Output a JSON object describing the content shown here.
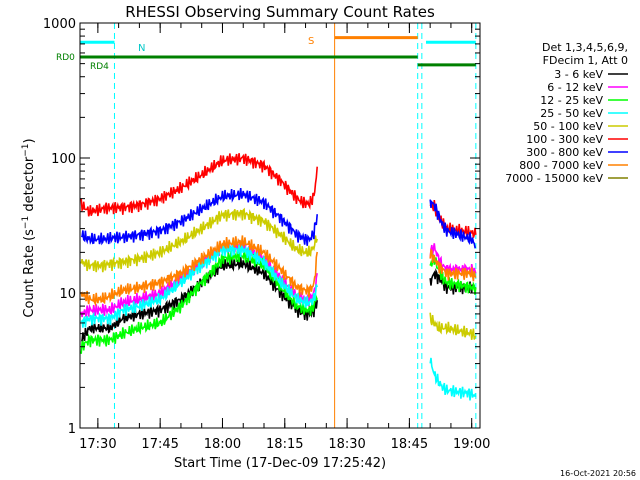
{
  "chart_data": {
    "type": "line",
    "title": "RHESSI Observing Summary Count Rates",
    "xlabel": "Start Time (17-Dec-09 17:25:42)",
    "ylabel": "Count Rate (s⁻¹ detector⁻¹)",
    "ylabel_main": "Count Rate (s",
    "ylabel_sup1": "−1",
    "ylabel_mid": " detector",
    "ylabel_sup2": "−1",
    "ylabel_end": ")",
    "yscale": "log",
    "ylim": [
      1,
      1000
    ],
    "y_ticks": [
      {
        "value": 1,
        "label": "1"
      },
      {
        "value": 10,
        "label": "10"
      },
      {
        "value": 100,
        "label": "100"
      },
      {
        "value": 1000,
        "label": "1000"
      }
    ],
    "x_ticks": [
      {
        "value": "17:30",
        "label": "17:30"
      },
      {
        "value": "17:45",
        "label": "17:45"
      },
      {
        "value": "18:00",
        "label": "18:00"
      },
      {
        "value": "18:15",
        "label": "18:15"
      },
      {
        "value": "18:30",
        "label": "18:30"
      },
      {
        "value": "18:45",
        "label": "18:45"
      },
      {
        "value": "19:00",
        "label": "19:00"
      }
    ],
    "xlim": [
      "17:25:42",
      "19:02:00"
    ],
    "legend_position": "right",
    "legend_header": [
      "Det 1,3,4,5,6,9,",
      "FDecim 1, Att 0"
    ],
    "series": [
      {
        "name": "3 - 6 keV",
        "color": "#000000",
        "x": [
          "17:26",
          "17:28",
          "17:31",
          "17:33",
          "17:36",
          "17:40",
          "17:45",
          "17:50",
          "17:55",
          "18:00",
          "18:05",
          "18:10",
          "18:14",
          "18:18",
          "18:20",
          "18:21",
          "18:22",
          "18:23",
          "18:50",
          "18:51",
          "18:52",
          "18:53",
          "18:54",
          "19:00",
          "19:01"
        ],
        "y": [
          4.5,
          5.5,
          5.5,
          5.5,
          6.5,
          7,
          7.5,
          9,
          12,
          16,
          16.5,
          14,
          10,
          7.5,
          7,
          7,
          7.5,
          9,
          12,
          14,
          13,
          12,
          11,
          11,
          11
        ]
      },
      {
        "name": "6 - 12 keV",
        "color": "#ff00ff",
        "x": [
          "17:26",
          "17:28",
          "17:31",
          "17:33",
          "17:36",
          "17:40",
          "17:45",
          "17:50",
          "17:55",
          "18:00",
          "18:05",
          "18:10",
          "18:14",
          "18:18",
          "18:20",
          "18:21",
          "18:22",
          "18:23",
          "18:50",
          "18:51",
          "18:52",
          "18:53",
          "18:54",
          "19:00",
          "19:01"
        ],
        "y": [
          7,
          7.5,
          7.5,
          7.5,
          8.5,
          9,
          10,
          13,
          17,
          22,
          22,
          18,
          13,
          9.5,
          9,
          9,
          10,
          14,
          20,
          22,
          18,
          16,
          15,
          15,
          14
        ]
      },
      {
        "name": "12 - 25 keV",
        "color": "#00ff00",
        "x": [
          "17:26",
          "17:28",
          "17:31",
          "17:33",
          "17:36",
          "17:40",
          "17:45",
          "17:50",
          "17:55",
          "18:00",
          "18:05",
          "18:10",
          "18:14",
          "18:18",
          "18:20",
          "18:21",
          "18:22",
          "18:23",
          "18:50",
          "18:51",
          "18:52",
          "18:53",
          "18:54",
          "19:00",
          "19:01"
        ],
        "y": [
          4,
          4.5,
          4.5,
          4.5,
          5,
          5.5,
          6,
          8,
          12,
          18,
          19,
          16,
          11,
          8,
          7.5,
          7.5,
          8,
          10,
          16,
          18,
          15,
          13,
          12,
          11,
          11
        ]
      },
      {
        "name": "25 - 50 keV",
        "color": "#00ffff",
        "x": [
          "17:26",
          "17:28",
          "17:31",
          "17:33",
          "17:36",
          "17:40",
          "17:45",
          "17:50",
          "17:55",
          "18:00",
          "18:05",
          "18:10",
          "18:14",
          "18:18",
          "18:20",
          "18:21",
          "18:22",
          "18:23",
          "18:50",
          "18:51",
          "18:52",
          "18:53",
          "18:54",
          "19:00",
          "19:01"
        ],
        "y": [
          6,
          6.5,
          6.5,
          6.5,
          7.5,
          8,
          9,
          12,
          16,
          21,
          21,
          17,
          12,
          9,
          8.5,
          8.5,
          9,
          12,
          3.2,
          2.5,
          2.2,
          2,
          1.9,
          1.8,
          1.7
        ]
      },
      {
        "name": "50 - 100 keV",
        "color": "#cccc00",
        "x": [
          "17:26",
          "17:28",
          "17:31",
          "17:33",
          "17:36",
          "17:40",
          "17:45",
          "17:50",
          "17:55",
          "18:00",
          "18:05",
          "18:10",
          "18:14",
          "18:18",
          "18:20",
          "18:21",
          "18:22",
          "18:23",
          "18:50",
          "18:51",
          "18:52",
          "18:53",
          "18:54",
          "19:00",
          "19:01"
        ],
        "y": [
          17,
          16,
          16,
          16.5,
          17,
          18,
          20,
          24,
          30,
          38,
          39,
          34,
          27,
          21,
          20,
          20,
          22,
          28,
          6.5,
          6,
          5.5,
          5.5,
          5.5,
          5,
          4.8
        ]
      },
      {
        "name": "100 - 300 keV",
        "color": "#ff0000",
        "x": [
          "17:26",
          "17:28",
          "17:31",
          "17:33",
          "17:36",
          "17:40",
          "17:45",
          "17:50",
          "17:55",
          "18:00",
          "18:05",
          "18:10",
          "18:14",
          "18:18",
          "18:20",
          "18:21",
          "18:22",
          "18:23",
          "18:50",
          "18:51",
          "18:52",
          "18:53",
          "18:54",
          "19:00",
          "19:01"
        ],
        "y": [
          45,
          40,
          42,
          43,
          43,
          45,
          50,
          60,
          75,
          96,
          100,
          88,
          68,
          50,
          46,
          46,
          52,
          90,
          45,
          44,
          36,
          33,
          30,
          28,
          27
        ]
      },
      {
        "name": "300 - 800 keV",
        "color": "#0000ff",
        "x": [
          "17:26",
          "17:28",
          "17:31",
          "17:33",
          "17:36",
          "17:40",
          "17:45",
          "17:50",
          "17:55",
          "18:00",
          "18:05",
          "18:10",
          "18:14",
          "18:18",
          "18:20",
          "18:21",
          "18:22",
          "18:23",
          "18:50",
          "18:51",
          "18:52",
          "18:53",
          "18:54",
          "19:00",
          "19:01"
        ],
        "y": [
          27,
          25,
          25,
          25.5,
          26,
          27,
          29,
          34,
          42,
          52,
          54,
          47,
          36,
          27,
          25,
          25,
          28,
          40,
          47,
          45,
          38,
          32,
          29,
          25,
          22
        ]
      },
      {
        "name": "800 - 7000 keV",
        "color": "#ff8000",
        "x": [
          "17:26",
          "17:28",
          "17:31",
          "17:33",
          "17:36",
          "17:40",
          "17:45",
          "17:50",
          "17:55",
          "18:00",
          "18:05",
          "18:10",
          "18:14",
          "18:18",
          "18:20",
          "18:21",
          "18:22",
          "18:23",
          "18:50",
          "18:51",
          "18:52",
          "18:53",
          "18:54",
          "19:00",
          "19:01"
        ],
        "y": [
          10,
          9,
          9,
          9.5,
          10.5,
          11,
          12,
          14,
          18,
          23,
          24,
          20,
          15,
          11,
          10.5,
          10.5,
          11.5,
          22,
          20,
          18,
          16,
          15,
          14,
          14,
          13
        ]
      },
      {
        "name": "7000 - 15000 keV",
        "color": "#808000",
        "x": [],
        "y": []
      }
    ],
    "flags": [
      {
        "label": "N",
        "color": "#00ffff",
        "segments": [
          [
            "17:25:42",
            "17:34:00"
          ],
          [
            "18:49:00",
            "19:01:00"
          ]
        ],
        "level": 720
      },
      {
        "label": "S",
        "color": "#ff8000",
        "segments": [
          [
            "18:27:00",
            "18:47:00"
          ]
        ],
        "level": 780
      },
      {
        "label": "RD0",
        "color": "#008000",
        "segments": [
          [
            "17:25:42",
            "18:47:00"
          ]
        ],
        "level": 560
      },
      {
        "label": "RD4",
        "color": "#008000",
        "segments": [
          [
            "18:47:00",
            "19:01:00"
          ]
        ],
        "level": 490
      }
    ],
    "vertical_markers": [
      {
        "time": "17:34:00",
        "color": "#00ffff",
        "style": "dashed"
      },
      {
        "time": "18:27:00",
        "color": "#ff8000",
        "style": "solid"
      },
      {
        "time": "18:47:00",
        "color": "#00ffff",
        "style": "dashed"
      },
      {
        "time": "18:48:00",
        "color": "#00ffff",
        "style": "dashed"
      },
      {
        "time": "19:01:00",
        "color": "#00ffff",
        "style": "dashed"
      }
    ],
    "grid": false,
    "footer_timestamp": "16-Oct-2021 20:56"
  }
}
